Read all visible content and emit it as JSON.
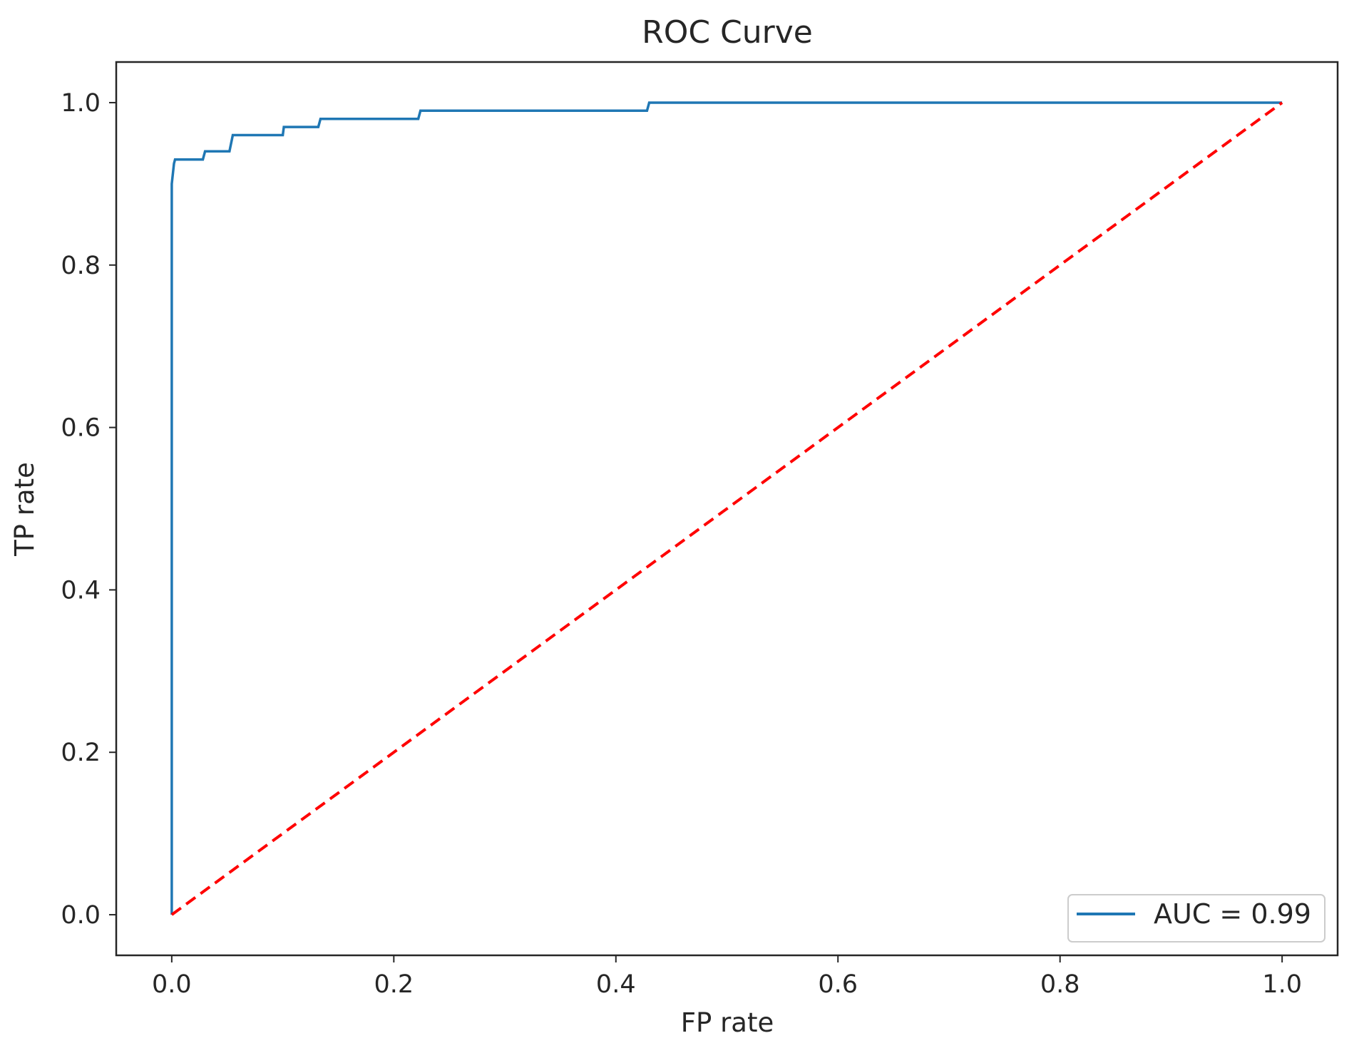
{
  "chart_data": {
    "type": "line",
    "title": "ROC Curve",
    "xlabel": "FP rate",
    "ylabel": "TP rate",
    "xlim": [
      -0.05,
      1.05
    ],
    "ylim": [
      -0.05,
      1.05
    ],
    "xticks": [
      0.0,
      0.2,
      0.4,
      0.6,
      0.8,
      1.0
    ],
    "yticks": [
      0.0,
      0.2,
      0.4,
      0.6,
      0.8,
      1.0
    ],
    "xtick_labels": [
      "0.0",
      "0.2",
      "0.4",
      "0.6",
      "0.8",
      "1.0"
    ],
    "ytick_labels": [
      "0.0",
      "0.2",
      "0.4",
      "0.6",
      "0.8",
      "1.0"
    ],
    "grid": false,
    "legend_position": "lower-right",
    "series": [
      {
        "name": "AUC = 0.99",
        "color": "#1f77b4",
        "style": "solid",
        "x": [
          0.0,
          0.0,
          0.0,
          0.002,
          0.003,
          0.028,
          0.03,
          0.052,
          0.055,
          0.1,
          0.101,
          0.132,
          0.134,
          0.222,
          0.224,
          0.428,
          0.43,
          1.0
        ],
        "y": [
          0.0,
          0.85,
          0.9,
          0.925,
          0.93,
          0.93,
          0.94,
          0.94,
          0.96,
          0.96,
          0.97,
          0.97,
          0.98,
          0.98,
          0.99,
          0.99,
          1.0,
          1.0
        ]
      },
      {
        "name": "",
        "color": "#ff0000",
        "style": "dashed",
        "x": [
          0.0,
          1.0
        ],
        "y": [
          0.0,
          1.0
        ]
      }
    ],
    "legend_entries": [
      "AUC = 0.99"
    ]
  }
}
